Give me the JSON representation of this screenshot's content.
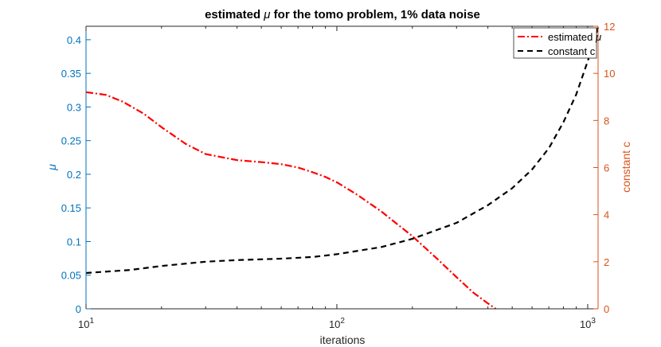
{
  "chart_data": {
    "type": "line",
    "title_prefix": "estimated ",
    "title_symbol": "μ",
    "title_suffix": " for the tomo problem, 1% data noise",
    "xlabel": "iterations",
    "x_scale": "log",
    "xlim": [
      10,
      1100
    ],
    "x_ticks": [
      {
        "value": 10,
        "base": "10",
        "exp": "1"
      },
      {
        "value": 100,
        "base": "10",
        "exp": "2"
      },
      {
        "value": 1000,
        "base": "10",
        "exp": "3"
      }
    ],
    "y_left": {
      "label": "μ",
      "ylim": [
        0,
        0.42
      ],
      "ticks": [
        "0",
        "0.05",
        "0.1",
        "0.15",
        "0.2",
        "0.25",
        "0.3",
        "0.35",
        "0.4"
      ],
      "tick_values": [
        0,
        0.05,
        0.1,
        0.15,
        0.2,
        0.25,
        0.3,
        0.35,
        0.4
      ],
      "color": "#0072BD"
    },
    "y_right": {
      "label": "constant c",
      "ylim": [
        0,
        12
      ],
      "ticks": [
        "0",
        "2",
        "4",
        "6",
        "8",
        "10",
        "12"
      ],
      "tick_values": [
        0,
        2,
        4,
        6,
        8,
        10,
        12
      ],
      "color": "#D95319"
    },
    "series": [
      {
        "name": "estimated μ",
        "legend_prefix": "estimated ",
        "legend_symbol": "μ",
        "axis": "left",
        "color": "#ff0000",
        "style": "dash-dot",
        "x": [
          10,
          12,
          14,
          17,
          20,
          25,
          30,
          40,
          50,
          60,
          70,
          80,
          90,
          100,
          120,
          150,
          200,
          250,
          300,
          350,
          400,
          430
        ],
        "y": [
          0.322,
          0.318,
          0.308,
          0.29,
          0.27,
          0.245,
          0.23,
          0.221,
          0.218,
          0.215,
          0.21,
          0.203,
          0.196,
          0.188,
          0.17,
          0.145,
          0.108,
          0.075,
          0.047,
          0.024,
          0.008,
          0.0
        ]
      },
      {
        "name": "constant c",
        "legend_prefix": "constant c",
        "legend_symbol": "",
        "axis": "right",
        "color": "#000000",
        "style": "dashed",
        "x": [
          10,
          15,
          20,
          30,
          40,
          60,
          80,
          100,
          150,
          200,
          300,
          400,
          500,
          600,
          700,
          800,
          900,
          1000,
          1100
        ],
        "y": [
          1.52,
          1.65,
          1.82,
          2.0,
          2.07,
          2.13,
          2.2,
          2.32,
          2.62,
          2.97,
          3.65,
          4.4,
          5.12,
          5.92,
          6.82,
          7.92,
          9.1,
          10.52,
          11.95
        ]
      }
    ],
    "legend_position": "top-right"
  }
}
